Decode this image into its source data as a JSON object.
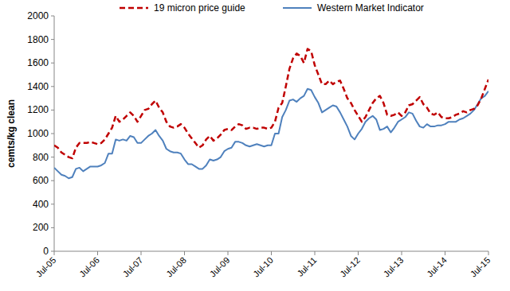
{
  "chart_data": {
    "type": "line",
    "y_label": "cemts/kg clean",
    "categories": [
      "Jul-05",
      null,
      null,
      null,
      null,
      null,
      null,
      null,
      null,
      null,
      null,
      null,
      "Jul-06",
      null,
      null,
      null,
      null,
      null,
      null,
      null,
      null,
      null,
      null,
      null,
      "Jul-07",
      null,
      null,
      null,
      null,
      null,
      null,
      null,
      null,
      null,
      null,
      null,
      "Jul-08",
      null,
      null,
      null,
      null,
      null,
      null,
      null,
      null,
      null,
      null,
      null,
      "Jul-09",
      null,
      null,
      null,
      null,
      null,
      null,
      null,
      null,
      null,
      null,
      null,
      "Jul-10",
      null,
      null,
      null,
      null,
      null,
      null,
      null,
      null,
      null,
      null,
      null,
      "Jul-11",
      null,
      null,
      null,
      null,
      null,
      null,
      null,
      null,
      null,
      null,
      null,
      "Jul-12",
      null,
      null,
      null,
      null,
      null,
      null,
      null,
      null,
      null,
      null,
      null,
      "Jul-13",
      null,
      null,
      null,
      null,
      null,
      null,
      null,
      null,
      null,
      null,
      null,
      "Jul-14",
      null,
      null,
      null,
      null,
      null,
      null,
      null,
      null,
      null,
      null,
      null,
      "Jul-15"
    ],
    "series": [
      {
        "name": "19 micron price guide",
        "color": "#c00000",
        "line_style": "dashed",
        "values": [
          900,
          880,
          840,
          820,
          800,
          790,
          880,
          920,
          920,
          920,
          930,
          920,
          910,
          920,
          950,
          1000,
          1050,
          1150,
          1100,
          1120,
          1150,
          1180,
          1150,
          1100,
          1150,
          1200,
          1210,
          1250,
          1280,
          1220,
          1180,
          1100,
          1060,
          1050,
          1060,
          1080,
          1050,
          1000,
          960,
          920,
          880,
          900,
          950,
          980,
          940,
          960,
          990,
          1030,
          1040,
          1030,
          1060,
          1080,
          1070,
          1040,
          1050,
          1050,
          1040,
          1050,
          1050,
          1040,
          1050,
          1100,
          1220,
          1260,
          1400,
          1550,
          1640,
          1680,
          1660,
          1600,
          1720,
          1700,
          1580,
          1500,
          1420,
          1420,
          1450,
          1420,
          1440,
          1450,
          1380,
          1300,
          1260,
          1200,
          1150,
          1100,
          1140,
          1200,
          1260,
          1300,
          1320,
          1260,
          1160,
          1150,
          1160,
          1180,
          1150,
          1180,
          1240,
          1250,
          1280,
          1310,
          1250,
          1220,
          1170,
          1160,
          1180,
          1140,
          1130,
          1130,
          1140,
          1160,
          1170,
          1190,
          1180,
          1200,
          1210,
          1240,
          1300,
          1380,
          1460
        ]
      },
      {
        "name": "Western Market Indicator",
        "color": "#4f81bd",
        "line_style": "solid",
        "values": [
          710,
          680,
          650,
          640,
          620,
          630,
          700,
          710,
          680,
          700,
          720,
          720,
          720,
          730,
          750,
          830,
          830,
          950,
          940,
          950,
          940,
          980,
          970,
          920,
          920,
          950,
          980,
          1000,
          1030,
          980,
          940,
          870,
          850,
          840,
          840,
          830,
          780,
          740,
          740,
          720,
          700,
          700,
          730,
          780,
          770,
          780,
          800,
          850,
          870,
          880,
          930,
          930,
          920,
          900,
          890,
          900,
          910,
          900,
          890,
          900,
          900,
          1000,
          1000,
          1140,
          1200,
          1280,
          1290,
          1270,
          1300,
          1320,
          1380,
          1370,
          1310,
          1260,
          1180,
          1200,
          1220,
          1240,
          1230,
          1180,
          1120,
          1060,
          980,
          950,
          1000,
          1040,
          1100,
          1130,
          1150,
          1120,
          1030,
          1040,
          1060,
          1010,
          1050,
          1100,
          1120,
          1140,
          1180,
          1170,
          1110,
          1060,
          1050,
          1080,
          1060,
          1060,
          1070,
          1070,
          1080,
          1100,
          1100,
          1100,
          1120,
          1130,
          1150,
          1170,
          1200,
          1250,
          1300,
          1320,
          1360
        ]
      }
    ],
    "ylim": [
      0,
      2000
    ],
    "yticks": [
      0,
      200,
      400,
      600,
      800,
      1000,
      1200,
      1400,
      1600,
      1800,
      2000
    ],
    "grid": false,
    "legend": "top"
  }
}
